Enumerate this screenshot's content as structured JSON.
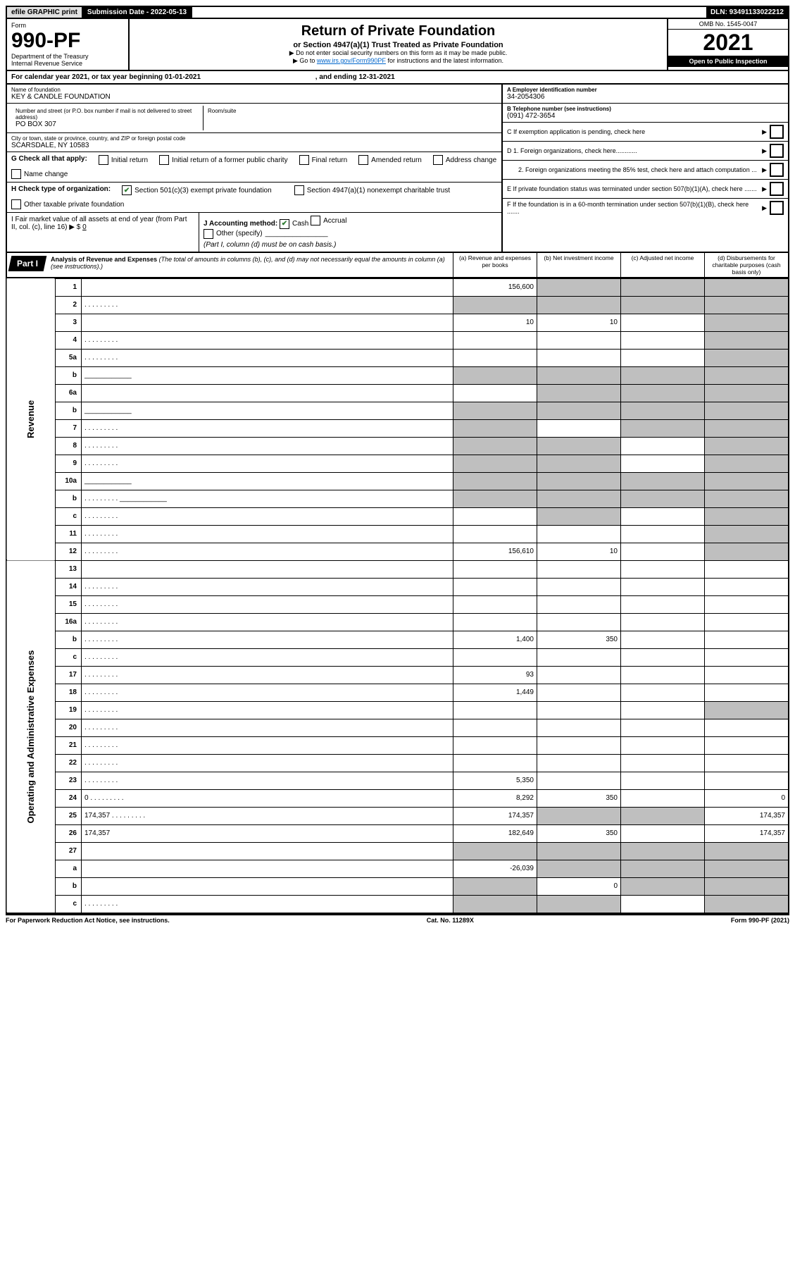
{
  "topbar": {
    "efile": "efile GRAPHIC print",
    "subm_label": "Submission Date - 2022-05-13",
    "dln": "DLN: 93491133022212"
  },
  "header": {
    "form_word": "Form",
    "form_no": "990-PF",
    "dept": "Department of the Treasury",
    "irs": "Internal Revenue Service",
    "title": "Return of Private Foundation",
    "subtitle": "or Section 4947(a)(1) Trust Treated as Private Foundation",
    "note1": "▶ Do not enter social security numbers on this form as it may be made public.",
    "note2_pre": "▶ Go to ",
    "note2_link": "www.irs.gov/Form990PF",
    "note2_post": " for instructions and the latest information.",
    "omb": "OMB No. 1545-0047",
    "year": "2021",
    "open": "Open to Public Inspection"
  },
  "calendar": {
    "pre": "For calendar year 2021, or tax year beginning ",
    "begin": "01-01-2021",
    "mid": " , and ending ",
    "end": "12-31-2021"
  },
  "entity": {
    "name_lbl": "Name of foundation",
    "name": "KEY & CANDLE FOUNDATION",
    "addr_lbl": "Number and street (or P.O. box number if mail is not delivered to street address)",
    "addr": "PO BOX 307",
    "room_lbl": "Room/suite",
    "city_lbl": "City or town, state or province, country, and ZIP or foreign postal code",
    "city": "SCARSDALE, NY  10583"
  },
  "right": {
    "a_lbl": "A Employer identification number",
    "a_val": "34-2054306",
    "b_lbl": "B Telephone number (see instructions)",
    "b_val": "(091) 472-3654",
    "c_lbl": "C If exemption application is pending, check here",
    "d1": "D 1. Foreign organizations, check here............",
    "d2": "2. Foreign organizations meeting the 85% test, check here and attach computation ...",
    "e": "E  If private foundation status was terminated under section 507(b)(1)(A), check here .......",
    "f": "F  If the foundation is in a 60-month termination under section 507(b)(1)(B), check here ......."
  },
  "g": {
    "label": "G Check all that apply:",
    "items": [
      "Initial return",
      "Initial return of a former public charity",
      "Final return",
      "Amended return",
      "Address change",
      "Name change"
    ]
  },
  "h": {
    "label": "H Check type of organization:",
    "opt1": "Section 501(c)(3) exempt private foundation",
    "opt2": "Section 4947(a)(1) nonexempt charitable trust",
    "opt3": "Other taxable private foundation"
  },
  "i": {
    "label": "I Fair market value of all assets at end of year (from Part II, col. (c), line 16) ▶ $",
    "val": "0"
  },
  "j": {
    "label": "J Accounting method:",
    "cash": "Cash",
    "accrual": "Accrual",
    "other": "Other (specify)",
    "note": "(Part I, column (d) must be on cash basis.)"
  },
  "part1": {
    "tag": "Part I",
    "title": "Analysis of Revenue and Expenses",
    "note": "(The total of amounts in columns (b), (c), and (d) may not necessarily equal the amounts in column (a) (see instructions).)",
    "cols": {
      "a": "(a) Revenue and expenses per books",
      "b": "(b) Net investment income",
      "c": "(c) Adjusted net income",
      "d": "(d) Disbursements for charitable purposes (cash basis only)"
    }
  },
  "sections": {
    "revenue": "Revenue",
    "expenses": "Operating and Administrative Expenses"
  },
  "rows": [
    {
      "n": "1",
      "d": "",
      "a": "156,600",
      "b": "",
      "c": "",
      "shade": [
        "b",
        "c",
        "d"
      ]
    },
    {
      "n": "2",
      "d": "",
      "dots": true,
      "a": "",
      "b": "",
      "c": "",
      "shade": [
        "a",
        "b",
        "c",
        "d"
      ]
    },
    {
      "n": "3",
      "d": "",
      "a": "10",
      "b": "10",
      "c": "",
      "shade": [
        "d"
      ]
    },
    {
      "n": "4",
      "d": "",
      "dots": true,
      "a": "",
      "b": "",
      "c": "",
      "shade": [
        "d"
      ]
    },
    {
      "n": "5a",
      "d": "",
      "dots": true,
      "a": "",
      "b": "",
      "c": "",
      "shade": [
        "d"
      ]
    },
    {
      "n": "b",
      "d": "",
      "line": true,
      "a": "",
      "b": "",
      "c": "",
      "shade": [
        "a",
        "b",
        "c",
        "d"
      ]
    },
    {
      "n": "6a",
      "d": "",
      "a": "",
      "b": "",
      "c": "",
      "shade": [
        "b",
        "c",
        "d"
      ]
    },
    {
      "n": "b",
      "d": "",
      "line": true,
      "a": "",
      "b": "",
      "c": "",
      "shade": [
        "a",
        "b",
        "c",
        "d"
      ]
    },
    {
      "n": "7",
      "d": "",
      "dots": true,
      "a": "",
      "b": "",
      "c": "",
      "shade": [
        "a",
        "c",
        "d"
      ]
    },
    {
      "n": "8",
      "d": "",
      "dots": true,
      "a": "",
      "b": "",
      "c": "",
      "shade": [
        "a",
        "b",
        "d"
      ]
    },
    {
      "n": "9",
      "d": "",
      "dots": true,
      "a": "",
      "b": "",
      "c": "",
      "shade": [
        "a",
        "b",
        "d"
      ]
    },
    {
      "n": "10a",
      "d": "",
      "line": true,
      "a": "",
      "b": "",
      "c": "",
      "shade": [
        "a",
        "b",
        "c",
        "d"
      ]
    },
    {
      "n": "b",
      "d": "",
      "dots": true,
      "line": true,
      "a": "",
      "b": "",
      "c": "",
      "shade": [
        "a",
        "b",
        "c",
        "d"
      ]
    },
    {
      "n": "c",
      "d": "",
      "dots": true,
      "a": "",
      "b": "",
      "c": "",
      "shade": [
        "b",
        "d"
      ]
    },
    {
      "n": "11",
      "d": "",
      "dots": true,
      "a": "",
      "b": "",
      "c": "",
      "shade": [
        "d"
      ]
    },
    {
      "n": "12",
      "d": "",
      "dots": true,
      "a": "156,610",
      "b": "10",
      "c": "",
      "shade": [
        "d"
      ]
    },
    {
      "n": "13",
      "d": "",
      "a": "",
      "b": "",
      "c": ""
    },
    {
      "n": "14",
      "d": "",
      "dots": true,
      "a": "",
      "b": "",
      "c": ""
    },
    {
      "n": "15",
      "d": "",
      "dots": true,
      "a": "",
      "b": "",
      "c": ""
    },
    {
      "n": "16a",
      "d": "",
      "dots": true,
      "a": "",
      "b": "",
      "c": ""
    },
    {
      "n": "b",
      "d": "",
      "dots": true,
      "a": "1,400",
      "b": "350",
      "c": ""
    },
    {
      "n": "c",
      "d": "",
      "dots": true,
      "a": "",
      "b": "",
      "c": ""
    },
    {
      "n": "17",
      "d": "",
      "dots": true,
      "a": "93",
      "b": "",
      "c": ""
    },
    {
      "n": "18",
      "d": "",
      "dots": true,
      "a": "1,449",
      "b": "",
      "c": ""
    },
    {
      "n": "19",
      "d": "",
      "dots": true,
      "a": "",
      "b": "",
      "c": "",
      "shade": [
        "d"
      ]
    },
    {
      "n": "20",
      "d": "",
      "dots": true,
      "a": "",
      "b": "",
      "c": ""
    },
    {
      "n": "21",
      "d": "",
      "dots": true,
      "a": "",
      "b": "",
      "c": ""
    },
    {
      "n": "22",
      "d": "",
      "dots": true,
      "a": "",
      "b": "",
      "c": ""
    },
    {
      "n": "23",
      "d": "",
      "dots": true,
      "a": "5,350",
      "b": "",
      "c": ""
    },
    {
      "n": "24",
      "d": "0",
      "dots": true,
      "a": "8,292",
      "b": "350",
      "c": ""
    },
    {
      "n": "25",
      "d": "174,357",
      "dots": true,
      "a": "174,357",
      "b": "",
      "c": "",
      "shade": [
        "b",
        "c"
      ]
    },
    {
      "n": "26",
      "d": "174,357",
      "a": "182,649",
      "b": "350",
      "c": ""
    },
    {
      "n": "27",
      "d": "",
      "a": "",
      "b": "",
      "c": "",
      "shade": [
        "a",
        "b",
        "c",
        "d"
      ]
    },
    {
      "n": "a",
      "d": "",
      "a": "-26,039",
      "b": "",
      "c": "",
      "shade": [
        "b",
        "c",
        "d"
      ]
    },
    {
      "n": "b",
      "d": "",
      "a": "",
      "b": "0",
      "c": "",
      "shade": [
        "a",
        "c",
        "d"
      ]
    },
    {
      "n": "c",
      "d": "",
      "dots": true,
      "a": "",
      "b": "",
      "c": "",
      "shade": [
        "a",
        "b",
        "d"
      ]
    }
  ],
  "footer": {
    "left": "For Paperwork Reduction Act Notice, see instructions.",
    "mid": "Cat. No. 11289X",
    "right": "Form 990-PF (2021)"
  }
}
